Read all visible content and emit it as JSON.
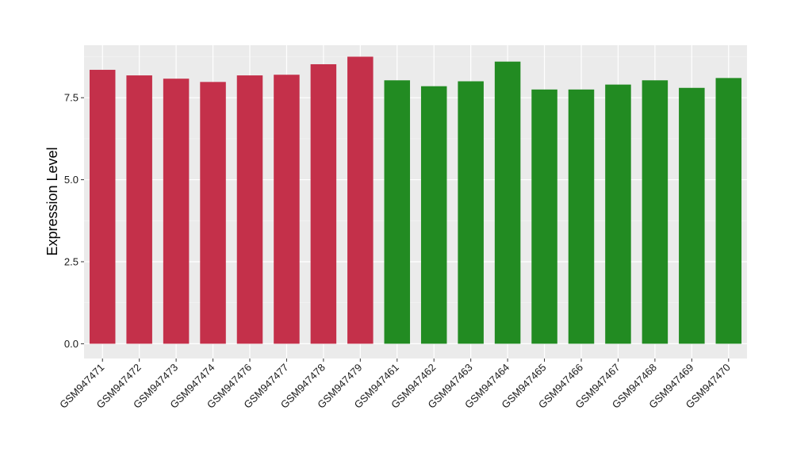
{
  "chart_data": {
    "type": "bar",
    "title": "",
    "xlabel": "",
    "ylabel": "Expression Level",
    "ylim": [
      -0.45,
      9.1
    ],
    "yticks": [
      0.0,
      2.5,
      5.0,
      7.5
    ],
    "ytick_labels": [
      "0.0",
      "2.5",
      "5.0",
      "7.5"
    ],
    "grid": true,
    "legend": "none",
    "colors": {
      "panel_background": "#ebebeb",
      "grid_major": "#ffffff",
      "grid_minor": "#f5f5f5",
      "group_a": "#c4304a",
      "group_b": "#228b22"
    },
    "categories": [
      "GSM947471",
      "GSM947472",
      "GSM947473",
      "GSM947474",
      "GSM947476",
      "GSM947477",
      "GSM947478",
      "GSM947479",
      "GSM947461",
      "GSM947462",
      "GSM947463",
      "GSM947464",
      "GSM947465",
      "GSM947466",
      "GSM947467",
      "GSM947468",
      "GSM947469",
      "GSM947470"
    ],
    "values": [
      8.35,
      8.18,
      8.08,
      7.98,
      8.18,
      8.2,
      8.52,
      8.75,
      8.03,
      7.85,
      8.0,
      8.6,
      7.75,
      7.75,
      7.9,
      8.03,
      7.8,
      8.1
    ],
    "bar_colors": [
      "#c4304a",
      "#c4304a",
      "#c4304a",
      "#c4304a",
      "#c4304a",
      "#c4304a",
      "#c4304a",
      "#c4304a",
      "#228b22",
      "#228b22",
      "#228b22",
      "#228b22",
      "#228b22",
      "#228b22",
      "#228b22",
      "#228b22",
      "#228b22",
      "#228b22"
    ]
  }
}
